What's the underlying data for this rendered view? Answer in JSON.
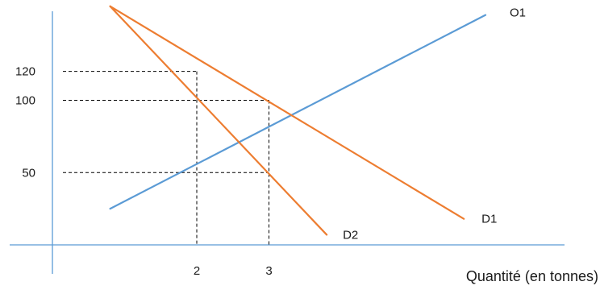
{
  "chart_data": {
    "type": "line",
    "xlabel": "Quantité (en tonnes)",
    "ylabel": "",
    "x_ticks": [
      {
        "value": 2,
        "label": "2"
      },
      {
        "value": 3,
        "label": "3"
      }
    ],
    "y_ticks": [
      {
        "value": 50,
        "label": "50"
      },
      {
        "value": 100,
        "label": "100"
      },
      {
        "value": 120,
        "label": "120"
      }
    ],
    "xlim": [
      -0.2,
      7.4
    ],
    "ylim": [
      0,
      165
    ],
    "series": [
      {
        "name": "O1",
        "color": "#5b9bd5",
        "points": [
          [
            0.8,
            25
          ],
          [
            6.0,
            159
          ]
        ]
      },
      {
        "name": "D1",
        "color": "#ed7d31",
        "points": [
          [
            0.8,
            165
          ],
          [
            5.7,
            18
          ]
        ]
      },
      {
        "name": "D2",
        "color": "#ed7d31",
        "points": [
          [
            0.8,
            165
          ],
          [
            3.8,
            7
          ]
        ]
      }
    ],
    "reference_points": [
      {
        "x": 2,
        "y": 120
      },
      {
        "x": 3,
        "y": 100
      },
      {
        "x": 3,
        "y": 50
      }
    ],
    "reference_levels": [
      {
        "y": 120,
        "x_end": 2
      },
      {
        "y": 100,
        "x_end": 3
      },
      {
        "y": 50,
        "x_end": 3
      }
    ],
    "reference_drops": [
      {
        "x": 2,
        "y_top": 120
      },
      {
        "x": 3,
        "y_top": 100
      }
    ],
    "axis_color": "#5b9bd5",
    "guide_color": "#000000",
    "grid": false,
    "legend": "none"
  }
}
